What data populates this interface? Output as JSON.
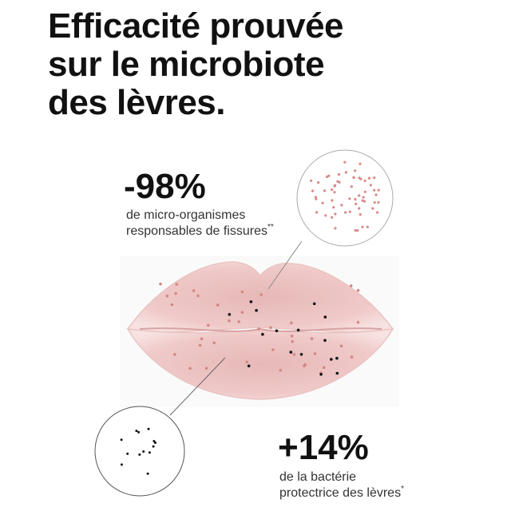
{
  "title": {
    "lines": [
      "Efficacité prouvée",
      "sur le microbiote",
      "des lèvres."
    ]
  },
  "stats": [
    {
      "value": "-98%",
      "lines": [
        "de micro-organismes",
        "responsables de fissures"
      ],
      "footnote_mark": "**"
    },
    {
      "value": "+14%",
      "lines": [
        "de la bactérie",
        "protectrice des lèvres"
      ],
      "footnote_mark": "*"
    }
  ]
}
